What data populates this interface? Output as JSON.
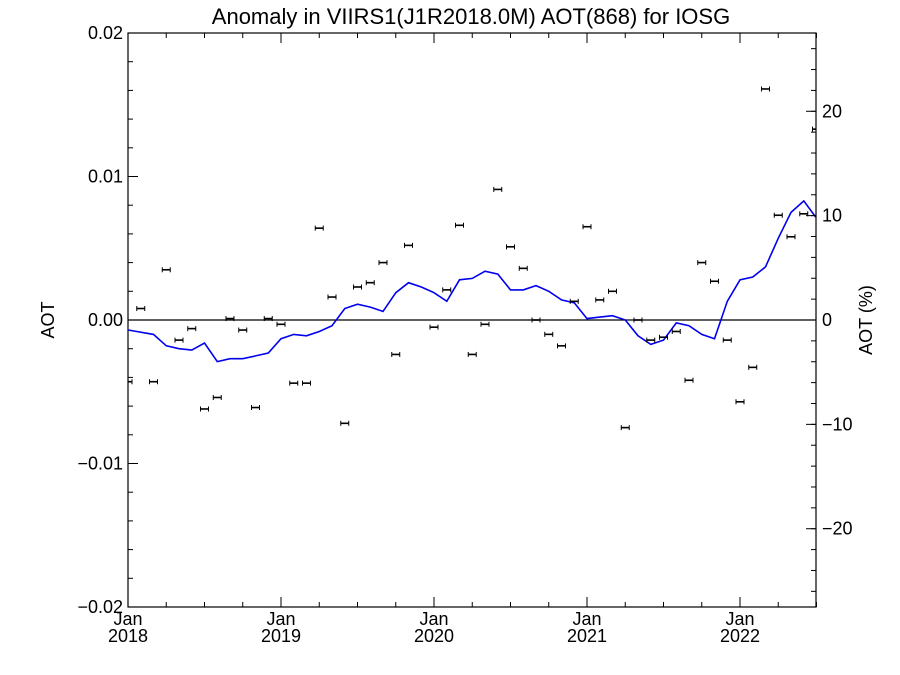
{
  "chart_data": {
    "type": "scatter+line",
    "title": "Anomaly in VIIRS1(J1R2018.0M) AOT(868) for IOSG",
    "ylabel_left": "AOT",
    "ylabel_right": "AOT (%)",
    "xlabel": "",
    "ylim_left": [
      -0.02,
      0.02
    ],
    "ylim_right": [
      -27.5,
      27.5
    ],
    "xlim": [
      "2018-01",
      "2022-06"
    ],
    "yticks_left": [
      {
        "value": 0.02,
        "label": "0.02"
      },
      {
        "value": 0.01,
        "label": "0.01"
      },
      {
        "value": 0.0,
        "label": "0.00"
      },
      {
        "value": -0.01,
        "label": "−0.01"
      },
      {
        "value": -0.02,
        "label": "−0.02"
      }
    ],
    "yticks_right": [
      {
        "value": 20,
        "label": "20"
      },
      {
        "value": 10,
        "label": "10"
      },
      {
        "value": 0,
        "label": "0"
      },
      {
        "value": -10,
        "label": "−10"
      },
      {
        "value": -20,
        "label": "−20"
      }
    ],
    "xticks": [
      {
        "date": "2018-01",
        "month": "Jan",
        "year": "2018"
      },
      {
        "date": "2019-01",
        "month": "Jan",
        "year": "2019"
      },
      {
        "date": "2020-01",
        "month": "Jan",
        "year": "2020"
      },
      {
        "date": "2021-01",
        "month": "Jan",
        "year": "2021"
      },
      {
        "date": "2022-01",
        "month": "Jan",
        "year": "2022"
      }
    ],
    "grid": false,
    "zero_line": 0.0,
    "colors": {
      "points": "#000000",
      "line": "#0000ee",
      "axes": "#000000"
    },
    "series": [
      {
        "kind": "points-with-errorbars",
        "points": [
          {
            "x": "2018-01",
            "y": -0.0043
          },
          {
            "x": "2018-02",
            "y": 0.0008
          },
          {
            "x": "2018-03",
            "y": -0.0043
          },
          {
            "x": "2018-04",
            "y": 0.0035
          },
          {
            "x": "2018-05",
            "y": -0.0014
          },
          {
            "x": "2018-06",
            "y": -0.0006
          },
          {
            "x": "2018-07",
            "y": -0.0062
          },
          {
            "x": "2018-08",
            "y": -0.0054
          },
          {
            "x": "2018-09",
            "y": 0.0001
          },
          {
            "x": "2018-10",
            "y": -0.0007
          },
          {
            "x": "2018-11",
            "y": -0.0061
          },
          {
            "x": "2018-12",
            "y": 0.0001
          },
          {
            "x": "2019-01",
            "y": -0.0003
          },
          {
            "x": "2019-02",
            "y": -0.0044
          },
          {
            "x": "2019-03",
            "y": -0.0044
          },
          {
            "x": "2019-04",
            "y": 0.0064
          },
          {
            "x": "2019-05",
            "y": 0.0016
          },
          {
            "x": "2019-06",
            "y": -0.0072
          },
          {
            "x": "2019-07",
            "y": 0.0023
          },
          {
            "x": "2019-08",
            "y": 0.0026
          },
          {
            "x": "2019-09",
            "y": 0.004
          },
          {
            "x": "2019-10",
            "y": -0.0024
          },
          {
            "x": "2019-11",
            "y": 0.0052
          },
          {
            "x": "2020-01",
            "y": -0.0005
          },
          {
            "x": "2020-02",
            "y": 0.0021
          },
          {
            "x": "2020-03",
            "y": 0.0066
          },
          {
            "x": "2020-04",
            "y": -0.0024
          },
          {
            "x": "2020-05",
            "y": -0.0003
          },
          {
            "x": "2020-06",
            "y": 0.0091
          },
          {
            "x": "2020-07",
            "y": 0.0051
          },
          {
            "x": "2020-08",
            "y": 0.0036
          },
          {
            "x": "2020-09",
            "y": 0.0
          },
          {
            "x": "2020-10",
            "y": -0.001
          },
          {
            "x": "2020-11",
            "y": -0.0018
          },
          {
            "x": "2020-12",
            "y": 0.0013
          },
          {
            "x": "2021-01",
            "y": 0.0065
          },
          {
            "x": "2021-02",
            "y": 0.0014
          },
          {
            "x": "2021-03",
            "y": 0.002
          },
          {
            "x": "2021-04",
            "y": -0.0075
          },
          {
            "x": "2021-05",
            "y": 0.0
          },
          {
            "x": "2021-06",
            "y": -0.0014
          },
          {
            "x": "2021-07",
            "y": -0.0012
          },
          {
            "x": "2021-08",
            "y": -0.0008
          },
          {
            "x": "2021-09",
            "y": -0.0042
          },
          {
            "x": "2021-10",
            "y": 0.004
          },
          {
            "x": "2021-11",
            "y": 0.0027
          },
          {
            "x": "2021-12",
            "y": -0.0014
          },
          {
            "x": "2022-01",
            "y": -0.0057
          },
          {
            "x": "2022-02",
            "y": -0.0033
          },
          {
            "x": "2022-03",
            "y": 0.0161
          },
          {
            "x": "2022-04",
            "y": 0.0073
          },
          {
            "x": "2022-05",
            "y": 0.0058
          },
          {
            "x": "2022-06",
            "y": 0.0074
          },
          {
            "x": "2022-07",
            "y": 0.0133
          }
        ]
      },
      {
        "kind": "line",
        "points": [
          {
            "x": "2018-01",
            "y": -0.0007
          },
          {
            "x": "2018-03",
            "y": -0.001
          },
          {
            "x": "2018-04",
            "y": -0.0018
          },
          {
            "x": "2018-05",
            "y": -0.002
          },
          {
            "x": "2018-06",
            "y": -0.0021
          },
          {
            "x": "2018-07",
            "y": -0.0016
          },
          {
            "x": "2018-08",
            "y": -0.0029
          },
          {
            "x": "2018-09",
            "y": -0.0027
          },
          {
            "x": "2018-10",
            "y": -0.0027
          },
          {
            "x": "2018-11",
            "y": -0.0025
          },
          {
            "x": "2018-12",
            "y": -0.0023
          },
          {
            "x": "2019-01",
            "y": -0.0013
          },
          {
            "x": "2019-02",
            "y": -0.001
          },
          {
            "x": "2019-03",
            "y": -0.0011
          },
          {
            "x": "2019-04",
            "y": -0.0008
          },
          {
            "x": "2019-05",
            "y": -0.0004
          },
          {
            "x": "2019-06",
            "y": 0.0008
          },
          {
            "x": "2019-07",
            "y": 0.0011
          },
          {
            "x": "2019-08",
            "y": 0.0009
          },
          {
            "x": "2019-09",
            "y": 0.0006
          },
          {
            "x": "2019-10",
            "y": 0.0019
          },
          {
            "x": "2019-11",
            "y": 0.0026
          },
          {
            "x": "2019-12",
            "y": 0.0023
          },
          {
            "x": "2020-01",
            "y": 0.0019
          },
          {
            "x": "2020-02",
            "y": 0.0013
          },
          {
            "x": "2020-03",
            "y": 0.0028
          },
          {
            "x": "2020-04",
            "y": 0.0029
          },
          {
            "x": "2020-05",
            "y": 0.0034
          },
          {
            "x": "2020-06",
            "y": 0.0032
          },
          {
            "x": "2020-07",
            "y": 0.0021
          },
          {
            "x": "2020-08",
            "y": 0.0021
          },
          {
            "x": "2020-09",
            "y": 0.0024
          },
          {
            "x": "2020-10",
            "y": 0.002
          },
          {
            "x": "2020-11",
            "y": 0.0014
          },
          {
            "x": "2020-12",
            "y": 0.0012
          },
          {
            "x": "2021-01",
            "y": 0.0001
          },
          {
            "x": "2021-02",
            "y": 0.0002
          },
          {
            "x": "2021-03",
            "y": 0.0003
          },
          {
            "x": "2021-04",
            "y": 0.0
          },
          {
            "x": "2021-05",
            "y": -0.0011
          },
          {
            "x": "2021-06",
            "y": -0.0017
          },
          {
            "x": "2021-07",
            "y": -0.0014
          },
          {
            "x": "2021-08",
            "y": -0.0002
          },
          {
            "x": "2021-09",
            "y": -0.0004
          },
          {
            "x": "2021-10",
            "y": -0.001
          },
          {
            "x": "2021-11",
            "y": -0.0013
          },
          {
            "x": "2021-12",
            "y": 0.0013
          },
          {
            "x": "2022-01",
            "y": 0.0028
          },
          {
            "x": "2022-02",
            "y": 0.003
          },
          {
            "x": "2022-03",
            "y": 0.0037
          },
          {
            "x": "2022-04",
            "y": 0.0057
          },
          {
            "x": "2022-05",
            "y": 0.0075
          },
          {
            "x": "2022-06",
            "y": 0.0083
          },
          {
            "x": "2022-07",
            "y": 0.0071
          }
        ]
      }
    ]
  }
}
